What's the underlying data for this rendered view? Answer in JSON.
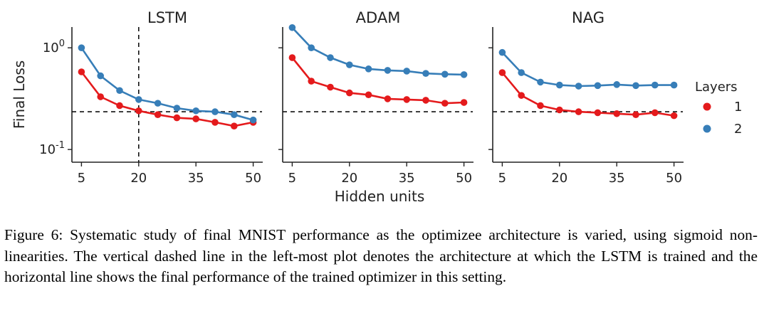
{
  "chart_data": {
    "type": "line",
    "y_scale": "log",
    "ylabel": "Final Loss",
    "xlabel": "Hidden units",
    "y_ticks": [
      {
        "value": 1.0,
        "base": "10",
        "exp": "0"
      },
      {
        "value": 0.1,
        "base": "10",
        "exp": "-1"
      }
    ],
    "ylim": [
      0.075,
      1.6
    ],
    "xlim": [
      2.5,
      52.5
    ],
    "x_ticks": [
      5,
      20,
      35,
      50
    ],
    "x_tick_labels": [
      "5",
      "20",
      "35",
      "50"
    ],
    "legend": {
      "title": "Layers",
      "placement": "right",
      "entries": [
        {
          "label": "1",
          "color": "#e41a1c"
        },
        {
          "label": "2",
          "color": "#377eb8"
        }
      ]
    },
    "reference_y": 0.235,
    "reference_x": 20,
    "panels": [
      {
        "title": "LSTM",
        "x": [
          5,
          10,
          15,
          20,
          25,
          30,
          35,
          40,
          45,
          50
        ],
        "series": [
          {
            "name": "1",
            "color": "#e41a1c",
            "values": [
              0.58,
              0.33,
              0.27,
              0.24,
              0.22,
              0.205,
              0.2,
              0.185,
              0.17,
              0.185
            ]
          },
          {
            "name": "2",
            "color": "#377eb8",
            "values": [
              1.0,
              0.53,
              0.38,
              0.31,
              0.285,
              0.255,
              0.24,
              0.235,
              0.22,
              0.195
            ]
          }
        ],
        "vline_x": 20
      },
      {
        "title": "ADAM",
        "x": [
          5,
          10,
          15,
          20,
          25,
          30,
          35,
          40,
          45,
          50
        ],
        "series": [
          {
            "name": "1",
            "color": "#e41a1c",
            "values": [
              0.8,
              0.47,
              0.41,
              0.36,
              0.345,
              0.315,
              0.31,
              0.305,
              0.285,
              0.29
            ]
          },
          {
            "name": "2",
            "color": "#377eb8",
            "values": [
              1.58,
              1.0,
              0.8,
              0.68,
              0.62,
              0.6,
              0.59,
              0.56,
              0.55,
              0.545
            ]
          }
        ]
      },
      {
        "title": "NAG",
        "x": [
          5,
          10,
          15,
          20,
          25,
          30,
          35,
          40,
          45,
          50
        ],
        "series": [
          {
            "name": "1",
            "color": "#e41a1c",
            "values": [
              0.57,
              0.34,
              0.27,
              0.245,
              0.235,
              0.23,
              0.225,
              0.22,
              0.23,
              0.215
            ]
          },
          {
            "name": "2",
            "color": "#377eb8",
            "values": [
              0.9,
              0.57,
              0.46,
              0.43,
              0.42,
              0.425,
              0.435,
              0.425,
              0.43,
              0.43
            ]
          }
        ]
      }
    ]
  },
  "caption": "Figure 6: Systematic study of final MNIST performance as the optimizee architecture is varied, using sigmoid non-linearities. The vertical dashed line in the left-most plot denotes the architecture at which the LSTM is trained and the horizontal line shows the final performance of the trained optimizer in this setting."
}
